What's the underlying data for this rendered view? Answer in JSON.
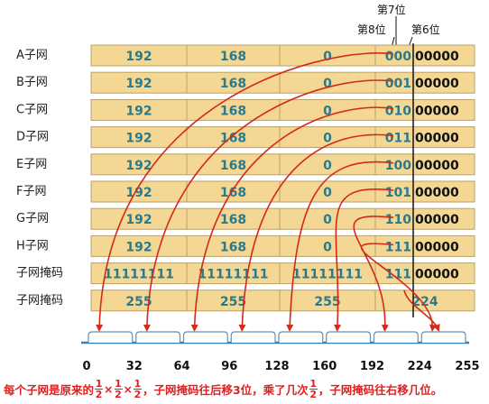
{
  "bit_labels": {
    "bit7": "第7位",
    "bit8": "第8位",
    "bit6": "第6位"
  },
  "rows": [
    {
      "label": "A子网",
      "o1": "192",
      "o2": "168",
      "o3": "0",
      "high_bits": "000",
      "low_bits": "00000"
    },
    {
      "label": "B子网",
      "o1": "192",
      "o2": "168",
      "o3": "0",
      "high_bits": "001",
      "low_bits": "00000"
    },
    {
      "label": "C子网",
      "o1": "192",
      "o2": "168",
      "o3": "0",
      "high_bits": "010",
      "low_bits": "00000"
    },
    {
      "label": "D子网",
      "o1": "192",
      "o2": "168",
      "o3": "0",
      "high_bits": "011",
      "low_bits": "00000"
    },
    {
      "label": "E子网",
      "o1": "192",
      "o2": "168",
      "o3": "0",
      "high_bits": "100",
      "low_bits": "00000"
    },
    {
      "label": "F子网",
      "o1": "192",
      "o2": "168",
      "o3": "0",
      "high_bits": "101",
      "low_bits": "00000"
    },
    {
      "label": "G子网",
      "o1": "192",
      "o2": "168",
      "o3": "0",
      "high_bits": "110",
      "low_bits": "00000"
    },
    {
      "label": "H子网",
      "o1": "192",
      "o2": "168",
      "o3": "0",
      "high_bits": "111",
      "low_bits": "00000"
    }
  ],
  "mask_binary": {
    "label": "子网掩码",
    "o1": "11111111",
    "o2": "11111111",
    "o3": "11111111",
    "high_bits": "111",
    "low_bits": "00000"
  },
  "mask_decimal": {
    "label": "子网掩码",
    "o1": "255",
    "o2": "255",
    "o3": "255",
    "o4": "224"
  },
  "scale_ticks": [
    "0",
    "32",
    "64",
    "96",
    "128",
    "160",
    "192",
    "224",
    "255"
  ],
  "caption": {
    "part1": "每个子网是原来的",
    "frac_num": "1",
    "frac_den": "2",
    "times": "×",
    "part2": "，子网掩码往后移3位，乘了几次",
    "part3": "，子网掩码往右移几位。"
  },
  "colors": {
    "cell": "#f3d792",
    "value_teal": "#2a7a8e",
    "arrow_red": "#d42a1a",
    "caption_red": "#e02020",
    "scale_blue": "#2f7fc4"
  }
}
